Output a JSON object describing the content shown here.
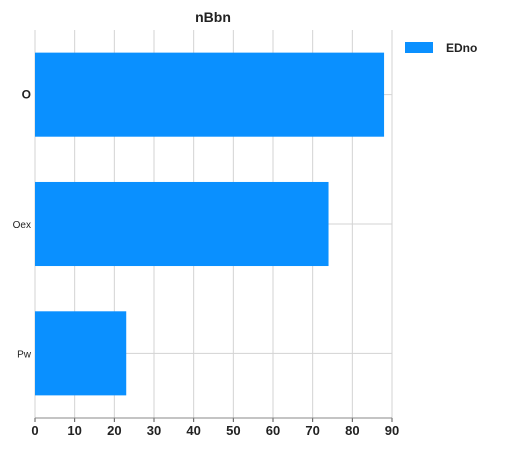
{
  "chart_data": {
    "type": "bar",
    "orientation": "horizontal",
    "title": "nBbn",
    "categories": [
      "O",
      "Oex",
      "Pw"
    ],
    "series": [
      {
        "name": "EDno",
        "values": [
          88,
          74,
          23
        ],
        "color": "#0a90ff"
      }
    ],
    "xlim": [
      0,
      90
    ],
    "xticks": [
      0,
      10,
      20,
      30,
      40,
      50,
      60,
      70,
      80,
      90
    ],
    "xlabel": "",
    "ylabel": "",
    "grid": true,
    "legend_position": "top-right"
  }
}
